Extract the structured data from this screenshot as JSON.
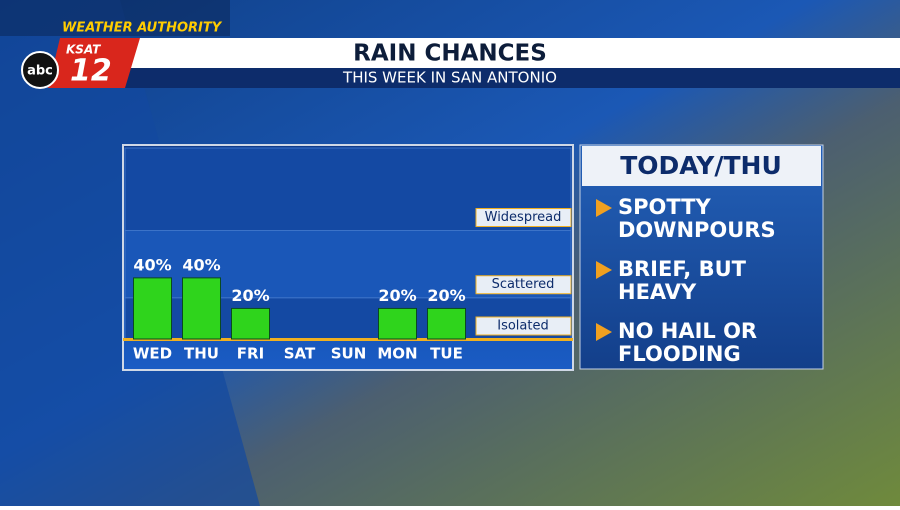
{
  "header": {
    "brand": "WEATHER AUTHORITY",
    "station": "KSAT",
    "channel": "12",
    "network": "abc",
    "title": "RAIN CHANCES",
    "subtitle": "THIS WEEK IN SAN ANTONIO"
  },
  "chart_data": {
    "type": "bar",
    "categories": [
      "WED",
      "THU",
      "FRI",
      "SAT",
      "SUN",
      "MON",
      "TUE"
    ],
    "values": [
      40,
      40,
      20,
      null,
      null,
      20,
      20
    ],
    "value_labels": [
      "40%",
      "40%",
      "20%",
      null,
      null,
      "20%",
      "20%"
    ],
    "color": "#2fd41c",
    "ylim": [
      0,
      125
    ],
    "bands": [
      {
        "label": "Isolated",
        "from": 0,
        "to": 27
      },
      {
        "label": "Scattered",
        "from": 27,
        "to": 71
      },
      {
        "label": "Widespread",
        "from": 71,
        "to": 125
      }
    ]
  },
  "sidebar": {
    "title": "TODAY/THU",
    "items": [
      [
        "SPOTTY",
        "DOWNPOURS"
      ],
      [
        "BRIEF, BUT",
        "HEAVY"
      ],
      [
        "NO HAIL OR",
        "FLOODING"
      ]
    ]
  }
}
